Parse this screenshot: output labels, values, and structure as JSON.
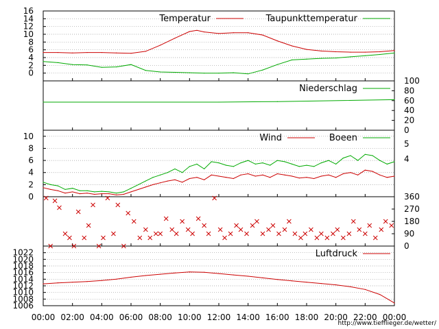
{
  "chart_data": [
    {
      "type": "line",
      "panel": "temperature",
      "ylim": [
        -2,
        16
      ],
      "yticks": [
        0,
        2,
        4,
        6,
        8,
        10,
        12,
        14,
        16
      ],
      "grid": true,
      "legend_placement": "top-right",
      "series": [
        {
          "name": "Temperatur",
          "color": "#cc0000",
          "x": [
            0,
            1,
            2,
            3,
            4,
            5,
            6,
            7,
            8,
            9,
            10,
            10.5,
            11,
            12,
            13,
            14,
            15,
            16,
            17,
            18,
            19,
            20,
            21,
            22,
            23,
            24
          ],
          "values": [
            5.3,
            5.3,
            5.2,
            5.3,
            5.3,
            5.2,
            5.1,
            5.6,
            7.2,
            9.0,
            10.7,
            11.0,
            10.6,
            10.2,
            10.4,
            10.4,
            9.8,
            8.3,
            7.0,
            6.1,
            5.7,
            5.5,
            5.4,
            5.4,
            5.5,
            5.8
          ]
        },
        {
          "name": "Taupunkttemperatur",
          "color": "#00aa00",
          "x": [
            0,
            1,
            2,
            3,
            4,
            5,
            6,
            7,
            8,
            9,
            10,
            11,
            12,
            13,
            14,
            15,
            16,
            17,
            18,
            19,
            20,
            21,
            22,
            23,
            24
          ],
          "values": [
            3.0,
            2.7,
            2.2,
            2.1,
            1.5,
            1.6,
            2.2,
            0.7,
            0.3,
            0.2,
            0.1,
            0.0,
            0.0,
            0.1,
            -0.2,
            0.8,
            2.2,
            3.4,
            3.6,
            3.8,
            3.9,
            4.2,
            4.5,
            4.8,
            5.2
          ]
        }
      ]
    },
    {
      "type": "line",
      "panel": "precipitation",
      "ylim": [
        0,
        100
      ],
      "yticks": [
        0,
        20,
        40,
        60,
        80,
        100
      ],
      "y_axis_side": "right",
      "grid": false,
      "legend_placement": "top-right",
      "series": [
        {
          "name": "Niederschlag",
          "color": "#00aa00",
          "x": [
            0,
            12,
            16,
            24
          ],
          "values": [
            57,
            57,
            58,
            62
          ]
        }
      ]
    },
    {
      "type": "line",
      "panel": "wind",
      "ylim": [
        0,
        11
      ],
      "yticks": [
        0,
        2,
        4,
        6,
        8,
        10
      ],
      "right_ticks": [
        "5",
        "4"
      ],
      "grid": true,
      "legend_placement": "top-right",
      "series": [
        {
          "name": "Wind",
          "color": "#cc0000",
          "x": [
            0,
            0.5,
            1,
            1.5,
            2,
            2.5,
            3,
            3.5,
            4,
            4.5,
            5,
            5.5,
            6,
            6.5,
            7,
            7.5,
            8,
            8.5,
            9,
            9.5,
            10,
            10.5,
            11,
            11.5,
            12,
            12.5,
            13,
            13.5,
            14,
            14.5,
            15,
            15.5,
            16,
            16.5,
            17,
            17.5,
            18,
            18.5,
            19,
            19.5,
            20,
            20.5,
            21,
            21.5,
            22,
            22.5,
            23,
            23.5,
            24
          ],
          "values": [
            1.5,
            1.2,
            1.0,
            0.6,
            0.8,
            0.5,
            0.6,
            0.4,
            0.5,
            0.5,
            0.3,
            0.4,
            0.8,
            1.2,
            1.6,
            2.0,
            2.3,
            2.6,
            2.8,
            2.4,
            3.0,
            3.2,
            2.8,
            3.6,
            3.4,
            3.2,
            3.0,
            3.6,
            3.8,
            3.4,
            3.6,
            3.2,
            3.8,
            3.6,
            3.4,
            3.1,
            3.2,
            3.0,
            3.4,
            3.6,
            3.2,
            3.8,
            4.0,
            3.6,
            4.4,
            4.2,
            3.6,
            3.2,
            3.4
          ]
        },
        {
          "name": "Boeen",
          "color": "#00aa00",
          "x": [
            0,
            0.5,
            1,
            1.5,
            2,
            2.5,
            3,
            3.5,
            4,
            4.5,
            5,
            5.5,
            6,
            6.5,
            7,
            7.5,
            8,
            8.5,
            9,
            9.5,
            10,
            10.5,
            11,
            11.5,
            12,
            12.5,
            13,
            13.5,
            14,
            14.5,
            15,
            15.5,
            16,
            16.5,
            17,
            17.5,
            18,
            18.5,
            19,
            19.5,
            20,
            20.5,
            21,
            21.5,
            22,
            22.5,
            23,
            23.5,
            24
          ],
          "values": [
            2.4,
            2.0,
            1.8,
            1.2,
            1.4,
            1.0,
            1.0,
            0.8,
            0.9,
            0.8,
            0.6,
            0.8,
            1.4,
            2.0,
            2.6,
            3.2,
            3.6,
            4.0,
            4.6,
            4.0,
            5.0,
            5.4,
            4.6,
            5.8,
            5.6,
            5.2,
            5.0,
            5.6,
            6.0,
            5.4,
            5.6,
            5.2,
            6.0,
            5.8,
            5.4,
            5.0,
            5.2,
            5.0,
            5.6,
            6.0,
            5.4,
            6.4,
            6.8,
            6.0,
            7.0,
            6.8,
            6.0,
            5.4,
            5.8
          ]
        }
      ]
    },
    {
      "type": "scatter",
      "panel": "wind-direction",
      "ylim": [
        0,
        360
      ],
      "yticks": [
        0,
        90,
        180,
        270,
        360
      ],
      "y_axis_side": "right",
      "grid": false,
      "color": "#cc0000",
      "x": [
        0.2,
        0.5,
        0.8,
        1.1,
        1.5,
        1.8,
        2.1,
        2.4,
        2.8,
        3.1,
        3.4,
        3.8,
        4.1,
        4.4,
        4.8,
        5.1,
        5.5,
        5.8,
        6.2,
        6.6,
        7.0,
        7.3,
        7.7,
        8.0,
        8.4,
        8.8,
        9.1,
        9.5,
        9.9,
        10.2,
        10.6,
        11.0,
        11.3,
        11.7,
        12.1,
        12.4,
        12.8,
        13.2,
        13.5,
        13.9,
        14.3,
        14.6,
        15.0,
        15.4,
        15.7,
        16.1,
        16.5,
        16.8,
        17.2,
        17.6,
        17.9,
        18.3,
        18.7,
        19.0,
        19.4,
        19.8,
        20.1,
        20.5,
        20.9,
        21.2,
        21.6,
        22.0,
        22.3,
        22.7,
        23.1,
        23.4,
        23.8
      ],
      "values": [
        350,
        0,
        330,
        280,
        90,
        60,
        0,
        250,
        60,
        150,
        300,
        0,
        60,
        350,
        90,
        300,
        0,
        240,
        180,
        60,
        120,
        60,
        90,
        90,
        200,
        120,
        90,
        180,
        120,
        90,
        200,
        150,
        90,
        350,
        120,
        60,
        90,
        150,
        120,
        90,
        150,
        180,
        90,
        120,
        150,
        90,
        120,
        180,
        90,
        60,
        90,
        120,
        60,
        90,
        60,
        90,
        120,
        60,
        90,
        180,
        120,
        90,
        150,
        60,
        120,
        180,
        150
      ]
    },
    {
      "type": "line",
      "panel": "pressure",
      "ylim": [
        1006,
        1024
      ],
      "yticks": [
        1006,
        1008,
        1010,
        1012,
        1014,
        1016,
        1018,
        1020,
        1022
      ],
      "grid": true,
      "legend_placement": "top-right",
      "series": [
        {
          "name": "Luftdruck",
          "color": "#cc0000",
          "x": [
            0,
            1,
            2,
            3,
            4,
            5,
            6,
            7,
            8,
            9,
            10,
            11,
            12,
            13,
            14,
            15,
            16,
            17,
            18,
            19,
            20,
            21,
            22,
            23,
            24
          ],
          "values": [
            1012.6,
            1012.9,
            1013.1,
            1013.3,
            1013.6,
            1014.0,
            1014.6,
            1015.1,
            1015.5,
            1015.9,
            1016.2,
            1016.1,
            1015.7,
            1015.3,
            1014.9,
            1014.4,
            1013.9,
            1013.5,
            1013.1,
            1012.7,
            1012.3,
            1011.7,
            1010.9,
            1009.4,
            1006.8
          ]
        }
      ]
    }
  ],
  "x_ticks": [
    "00:00",
    "02:00",
    "04:00",
    "06:00",
    "08:00",
    "10:00",
    "12:00",
    "14:00",
    "16:00",
    "18:00",
    "20:00",
    "22:00",
    "00:00"
  ],
  "footer_url": "http://www.tiefflieger.de/wetter/",
  "footer_color": "#cc0000"
}
